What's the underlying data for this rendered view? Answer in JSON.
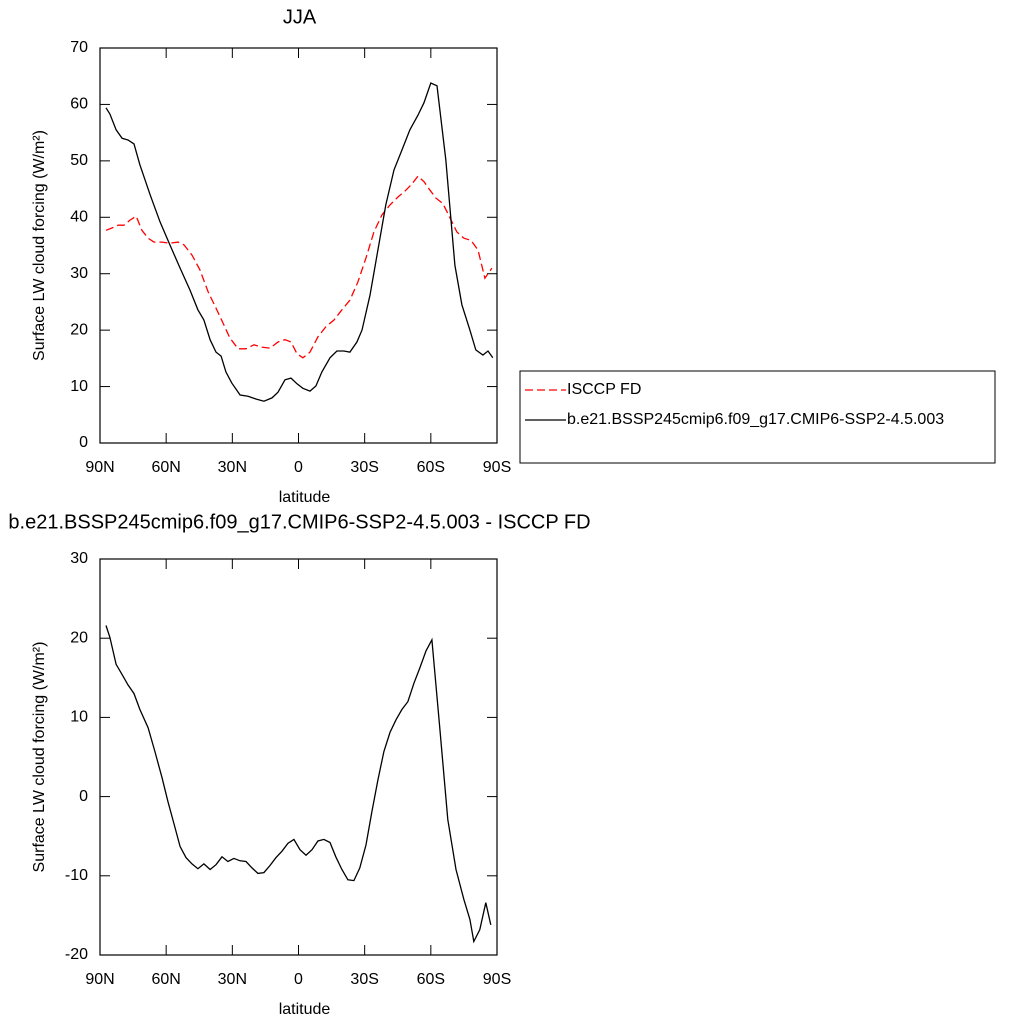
{
  "chart_data": [
    {
      "type": "line",
      "title": "JJA",
      "xlabel": "latitude",
      "ylabel": "Surface LW cloud forcing (W/m²)",
      "xlim": [
        90,
        -90
      ],
      "xticks": [
        {
          "value": 90,
          "label": "90N"
        },
        {
          "value": 60,
          "label": "60N"
        },
        {
          "value": 30,
          "label": "30N"
        },
        0,
        {
          "value": -30,
          "label": "30S"
        },
        {
          "value": -60,
          "label": "60S"
        },
        {
          "value": -90,
          "label": "90S"
        }
      ],
      "ylim": [
        0,
        70
      ],
      "yticks": [
        0,
        10,
        20,
        30,
        40,
        50,
        60,
        70
      ],
      "legend": "right",
      "series": [
        {
          "name": "ISCCP FD",
          "color": "#ff0000",
          "dashed": true,
          "x": [
            87.3,
            84.6,
            81.8,
            79.1,
            76.4,
            73.6,
            71.0,
            68.2,
            65.5,
            61.9,
            58.3,
            54.6,
            51.9,
            48.3,
            44.7,
            41.0,
            37.4,
            33.8,
            31.1,
            27.4,
            23.8,
            20.2,
            16.6,
            12.9,
            9.3,
            6.1,
            3.4,
            0.7,
            -2.0,
            -5.2,
            -8.8,
            -12.4,
            -16.1,
            -19.7,
            -23.3,
            -26.9,
            -30.6,
            -34.2,
            -37.8,
            -41.5,
            -45.1,
            -48.7,
            -51.4,
            -54.2,
            -56.9,
            -59.6,
            -62.3,
            -65.5,
            -68.7,
            -71.8,
            -75.0,
            -78.2,
            -81.4,
            -84.5,
            -87.7
          ],
          "values": [
            37.7,
            38.1,
            38.6,
            38.6,
            39.5,
            40.2,
            37.7,
            36.3,
            35.6,
            35.6,
            35.4,
            35.6,
            35.1,
            33.3,
            30.7,
            26.8,
            23.9,
            20.9,
            18.6,
            16.7,
            16.7,
            17.4,
            17.0,
            16.8,
            17.9,
            18.3,
            17.9,
            15.8,
            15.1,
            16.1,
            18.8,
            20.6,
            21.8,
            23.6,
            25.3,
            28.5,
            32.8,
            37.4,
            40.4,
            42.2,
            43.6,
            44.8,
            45.9,
            47.3,
            46.3,
            44.8,
            43.4,
            42.4,
            39.9,
            37.4,
            36.3,
            35.9,
            34.2,
            29.2,
            31.0
          ]
        },
        {
          "name": "b.e21.BSSP245cmip6.f09_g17.CMIP6-SSP2-4.5.003",
          "color": "#000000",
          "dashed": false,
          "x": [
            87.3,
            85.5,
            82.7,
            80.0,
            77.3,
            74.6,
            71.9,
            67.3,
            62.8,
            58.3,
            53.7,
            49.2,
            45.6,
            42.9,
            40.1,
            37.4,
            35.1,
            32.9,
            30.2,
            26.5,
            22.9,
            19.3,
            15.7,
            12.0,
            9.3,
            6.1,
            3.4,
            0.7,
            -2.0,
            -5.2,
            -7.9,
            -10.6,
            -14.3,
            -17.4,
            -20.6,
            -23.3,
            -26.5,
            -28.8,
            -32.4,
            -36.0,
            -39.6,
            -43.3,
            -46.9,
            -50.5,
            -54.2,
            -56.9,
            -60.0,
            -62.8,
            -66.8,
            -70.9,
            -74.1,
            -77.7,
            -80.4,
            -83.6,
            -85.9,
            -88.1
          ],
          "values": [
            59.4,
            58.3,
            55.5,
            54.0,
            53.7,
            53.0,
            49.3,
            44.0,
            39.2,
            35.1,
            31.0,
            27.1,
            23.6,
            21.8,
            18.3,
            16.1,
            15.4,
            12.6,
            10.6,
            8.5,
            8.3,
            7.8,
            7.4,
            8.0,
            9.0,
            11.2,
            11.5,
            10.5,
            9.7,
            9.2,
            10.1,
            12.6,
            15.1,
            16.3,
            16.3,
            16.1,
            17.9,
            20.0,
            26.2,
            34.2,
            42.2,
            48.4,
            51.9,
            55.5,
            58.1,
            60.3,
            63.8,
            63.3,
            50.2,
            31.5,
            24.5,
            20.0,
            16.5,
            15.6,
            16.3,
            15.1
          ]
        }
      ]
    },
    {
      "type": "line",
      "title": "b.e21.BSSP245cmip6.f09_g17.CMIP6-SSP2-4.5.003 - ISCCP FD",
      "xlabel": "latitude",
      "ylabel": "Surface LW cloud forcing (W/m²)",
      "xlim": [
        90,
        -90
      ],
      "xticks": [
        {
          "value": 90,
          "label": "90N"
        },
        {
          "value": 60,
          "label": "60N"
        },
        {
          "value": 30,
          "label": "30N"
        },
        0,
        {
          "value": -30,
          "label": "30S"
        },
        {
          "value": -60,
          "label": "60S"
        },
        {
          "value": -90,
          "label": "90S"
        }
      ],
      "ylim": [
        -20,
        30
      ],
      "yticks": [
        -20,
        -10,
        0,
        10,
        20,
        30
      ],
      "series": [
        {
          "color": "#000000",
          "dashed": false,
          "x": [
            87.3,
            85.5,
            82.7,
            80.0,
            77.3,
            74.6,
            71.9,
            68.2,
            65.1,
            61.9,
            59.2,
            56.5,
            53.7,
            51.0,
            48.3,
            45.6,
            42.9,
            40.1,
            37.4,
            34.7,
            32.0,
            29.3,
            26.5,
            23.8,
            21.1,
            18.4,
            15.7,
            12.9,
            10.2,
            7.5,
            4.8,
            2.1,
            -0.7,
            -3.4,
            -6.1,
            -8.8,
            -11.5,
            -14.3,
            -16.9,
            -19.7,
            -22.4,
            -25.1,
            -27.8,
            -30.6,
            -33.3,
            -36.0,
            -38.7,
            -41.5,
            -44.2,
            -46.9,
            -49.6,
            -52.3,
            -55.1,
            -57.8,
            -60.5,
            -64.1,
            -67.7,
            -71.4,
            -75.0,
            -77.7,
            -79.5,
            -82.2,
            -84.9,
            -87.2
          ],
          "values": [
            21.6,
            20.1,
            16.7,
            15.4,
            14.1,
            13.0,
            11.0,
            8.7,
            5.7,
            2.4,
            -0.6,
            -3.4,
            -6.3,
            -7.7,
            -8.5,
            -9.1,
            -8.5,
            -9.2,
            -8.6,
            -7.6,
            -8.2,
            -7.8,
            -8.1,
            -8.2,
            -9.0,
            -9.7,
            -9.6,
            -8.7,
            -7.7,
            -6.9,
            -5.9,
            -5.4,
            -6.7,
            -7.4,
            -6.7,
            -5.6,
            -5.4,
            -5.8,
            -7.6,
            -9.2,
            -10.5,
            -10.6,
            -9.0,
            -6.1,
            -1.9,
            2.1,
            5.7,
            8.1,
            9.7,
            11.0,
            12.0,
            14.3,
            16.3,
            18.4,
            19.8,
            8.5,
            -2.9,
            -9.2,
            -13.0,
            -15.5,
            -18.3,
            -16.8,
            -13.4,
            -16.2
          ]
        }
      ]
    }
  ]
}
